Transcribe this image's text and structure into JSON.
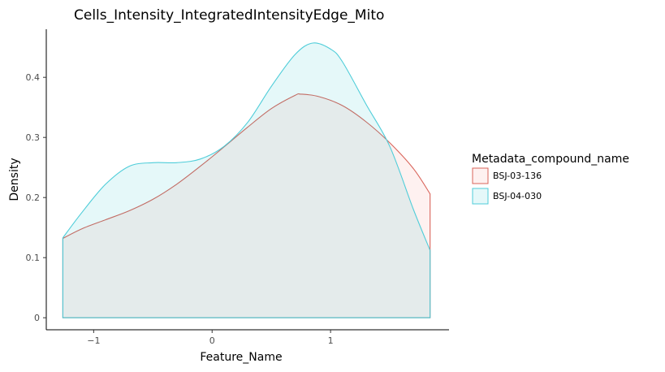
{
  "chart_data": {
    "type": "area",
    "title": "Cells_Intensity_IntegratedIntensityEdge_Mito",
    "xlabel": "Feature_Name",
    "ylabel": "Density",
    "xlim": [
      -1.4,
      2.0
    ],
    "ylim": [
      -0.02,
      0.48
    ],
    "x_ticks": [
      -1,
      0,
      1
    ],
    "x_tick_labels": [
      "−1",
      "0",
      "1"
    ],
    "y_ticks": [
      0,
      0.1,
      0.2,
      0.3,
      0.4
    ],
    "y_tick_labels": [
      "0",
      "0.1",
      "0.2",
      "0.3",
      "0.4"
    ],
    "grid": false,
    "legend": {
      "title": "Metadata_compound_name",
      "position": "right"
    },
    "series": [
      {
        "name": "BSJ-03-136",
        "line_color": "#d9645a",
        "fill_color": "#f8766d",
        "x": [
          -1.26,
          -1.1,
          -0.9,
          -0.7,
          -0.5,
          -0.3,
          -0.1,
          0.1,
          0.3,
          0.5,
          0.7,
          0.75,
          0.9,
          1.1,
          1.3,
          1.5,
          1.7,
          1.84
        ],
        "y": [
          0.132,
          0.148,
          0.163,
          0.178,
          0.197,
          0.222,
          0.252,
          0.284,
          0.317,
          0.348,
          0.37,
          0.372,
          0.368,
          0.353,
          0.326,
          0.291,
          0.248,
          0.206
        ]
      },
      {
        "name": "BSJ-04-030",
        "line_color": "#4fcdd9",
        "fill_color": "#00bfc4",
        "x": [
          -1.26,
          -1.1,
          -0.9,
          -0.7,
          -0.5,
          -0.3,
          -0.1,
          0.1,
          0.3,
          0.5,
          0.7,
          0.85,
          1.0,
          1.1,
          1.3,
          1.5,
          1.7,
          1.84
        ],
        "y": [
          0.133,
          0.175,
          0.222,
          0.252,
          0.258,
          0.258,
          0.264,
          0.285,
          0.325,
          0.385,
          0.438,
          0.457,
          0.447,
          0.426,
          0.355,
          0.285,
          0.18,
          0.112
        ]
      }
    ]
  }
}
